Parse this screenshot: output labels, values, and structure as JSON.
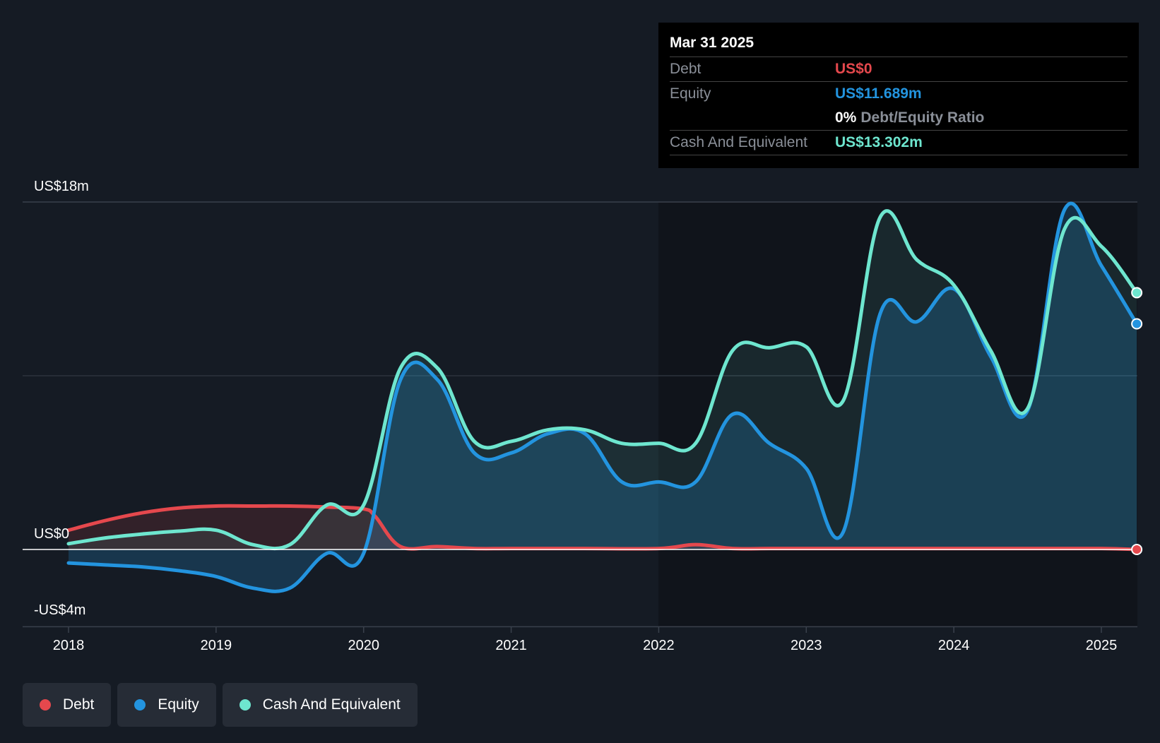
{
  "tooltip": {
    "date": "Mar 31 2025",
    "debt_label": "Debt",
    "debt_value": "US$0",
    "equity_label": "Equity",
    "equity_value": "US$11.689m",
    "ratio_pct": "0%",
    "ratio_label": "Debt/Equity Ratio",
    "cash_label": "Cash And Equivalent",
    "cash_value": "US$13.302m"
  },
  "legend": [
    {
      "label": "Debt",
      "color": "#e5484d"
    },
    {
      "label": "Equity",
      "color": "#2394df"
    },
    {
      "label": "Cash And Equivalent",
      "color": "#6ee6cf"
    }
  ],
  "chart_data": {
    "type": "area",
    "y_axis_labels": [
      "US$18m",
      "US$0",
      "-US$4m"
    ],
    "ylim": [
      -4,
      18
    ],
    "xlim": [
      2017.7,
      2025.24
    ],
    "x_ticks": [
      "2018",
      "2019",
      "2020",
      "2021",
      "2022",
      "2023",
      "2024",
      "2025"
    ],
    "grid": true,
    "legend_position": "bottom-left",
    "series": [
      {
        "name": "Debt",
        "color": "#e5484d",
        "x": [
          2018.0,
          2018.25,
          2018.5,
          2018.75,
          2019.0,
          2019.25,
          2019.5,
          2019.75,
          2020.0,
          2020.08,
          2020.25,
          2020.5,
          2020.75,
          2021.0,
          2021.5,
          2022.0,
          2022.25,
          2022.5,
          2022.75,
          2023.0,
          2023.5,
          2024.0,
          2024.5,
          2025.0,
          2025.24
        ],
        "values": [
          1.0,
          1.5,
          1.9,
          2.15,
          2.25,
          2.25,
          2.25,
          2.2,
          2.1,
          1.7,
          0.15,
          0.15,
          0.05,
          0.05,
          0.05,
          0.05,
          0.25,
          0.05,
          0.05,
          0.05,
          0.05,
          0.05,
          0.05,
          0.05,
          0.0
        ]
      },
      {
        "name": "Equity",
        "color": "#2394df",
        "x": [
          2018.0,
          2018.25,
          2018.5,
          2018.75,
          2019.0,
          2019.25,
          2019.5,
          2019.75,
          2020.0,
          2020.25,
          2020.5,
          2020.75,
          2021.0,
          2021.25,
          2021.5,
          2021.75,
          2022.0,
          2022.25,
          2022.5,
          2022.75,
          2023.0,
          2023.25,
          2023.5,
          2023.75,
          2024.0,
          2024.25,
          2024.5,
          2024.75,
          2025.0,
          2025.24
        ],
        "values": [
          -0.7,
          -0.8,
          -0.9,
          -1.1,
          -1.4,
          -2.0,
          -2.0,
          -0.2,
          -0.2,
          8.8,
          8.8,
          5.0,
          5.0,
          6.0,
          6.0,
          3.5,
          3.5,
          3.5,
          7.0,
          5.5,
          4.2,
          0.9,
          12.2,
          11.8,
          13.5,
          10.0,
          7.2,
          17.6,
          14.7,
          11.689
        ]
      },
      {
        "name": "Cash And Equivalent",
        "color": "#6ee6cf",
        "x": [
          2018.0,
          2018.25,
          2018.5,
          2018.75,
          2019.0,
          2019.25,
          2019.5,
          2019.75,
          2020.0,
          2020.25,
          2020.5,
          2020.75,
          2021.0,
          2021.25,
          2021.5,
          2021.75,
          2022.0,
          2022.25,
          2022.5,
          2022.75,
          2023.0,
          2023.25,
          2023.5,
          2023.75,
          2024.0,
          2024.25,
          2024.5,
          2024.75,
          2025.0,
          2025.24
        ],
        "values": [
          0.3,
          0.6,
          0.8,
          0.95,
          1.0,
          0.25,
          0.25,
          2.3,
          2.3,
          9.4,
          9.4,
          5.6,
          5.6,
          6.2,
          6.2,
          5.5,
          5.5,
          5.5,
          10.3,
          10.45,
          10.5,
          7.7,
          17.2,
          15.0,
          13.7,
          10.3,
          7.3,
          16.6,
          15.7,
          13.302
        ]
      }
    ]
  }
}
